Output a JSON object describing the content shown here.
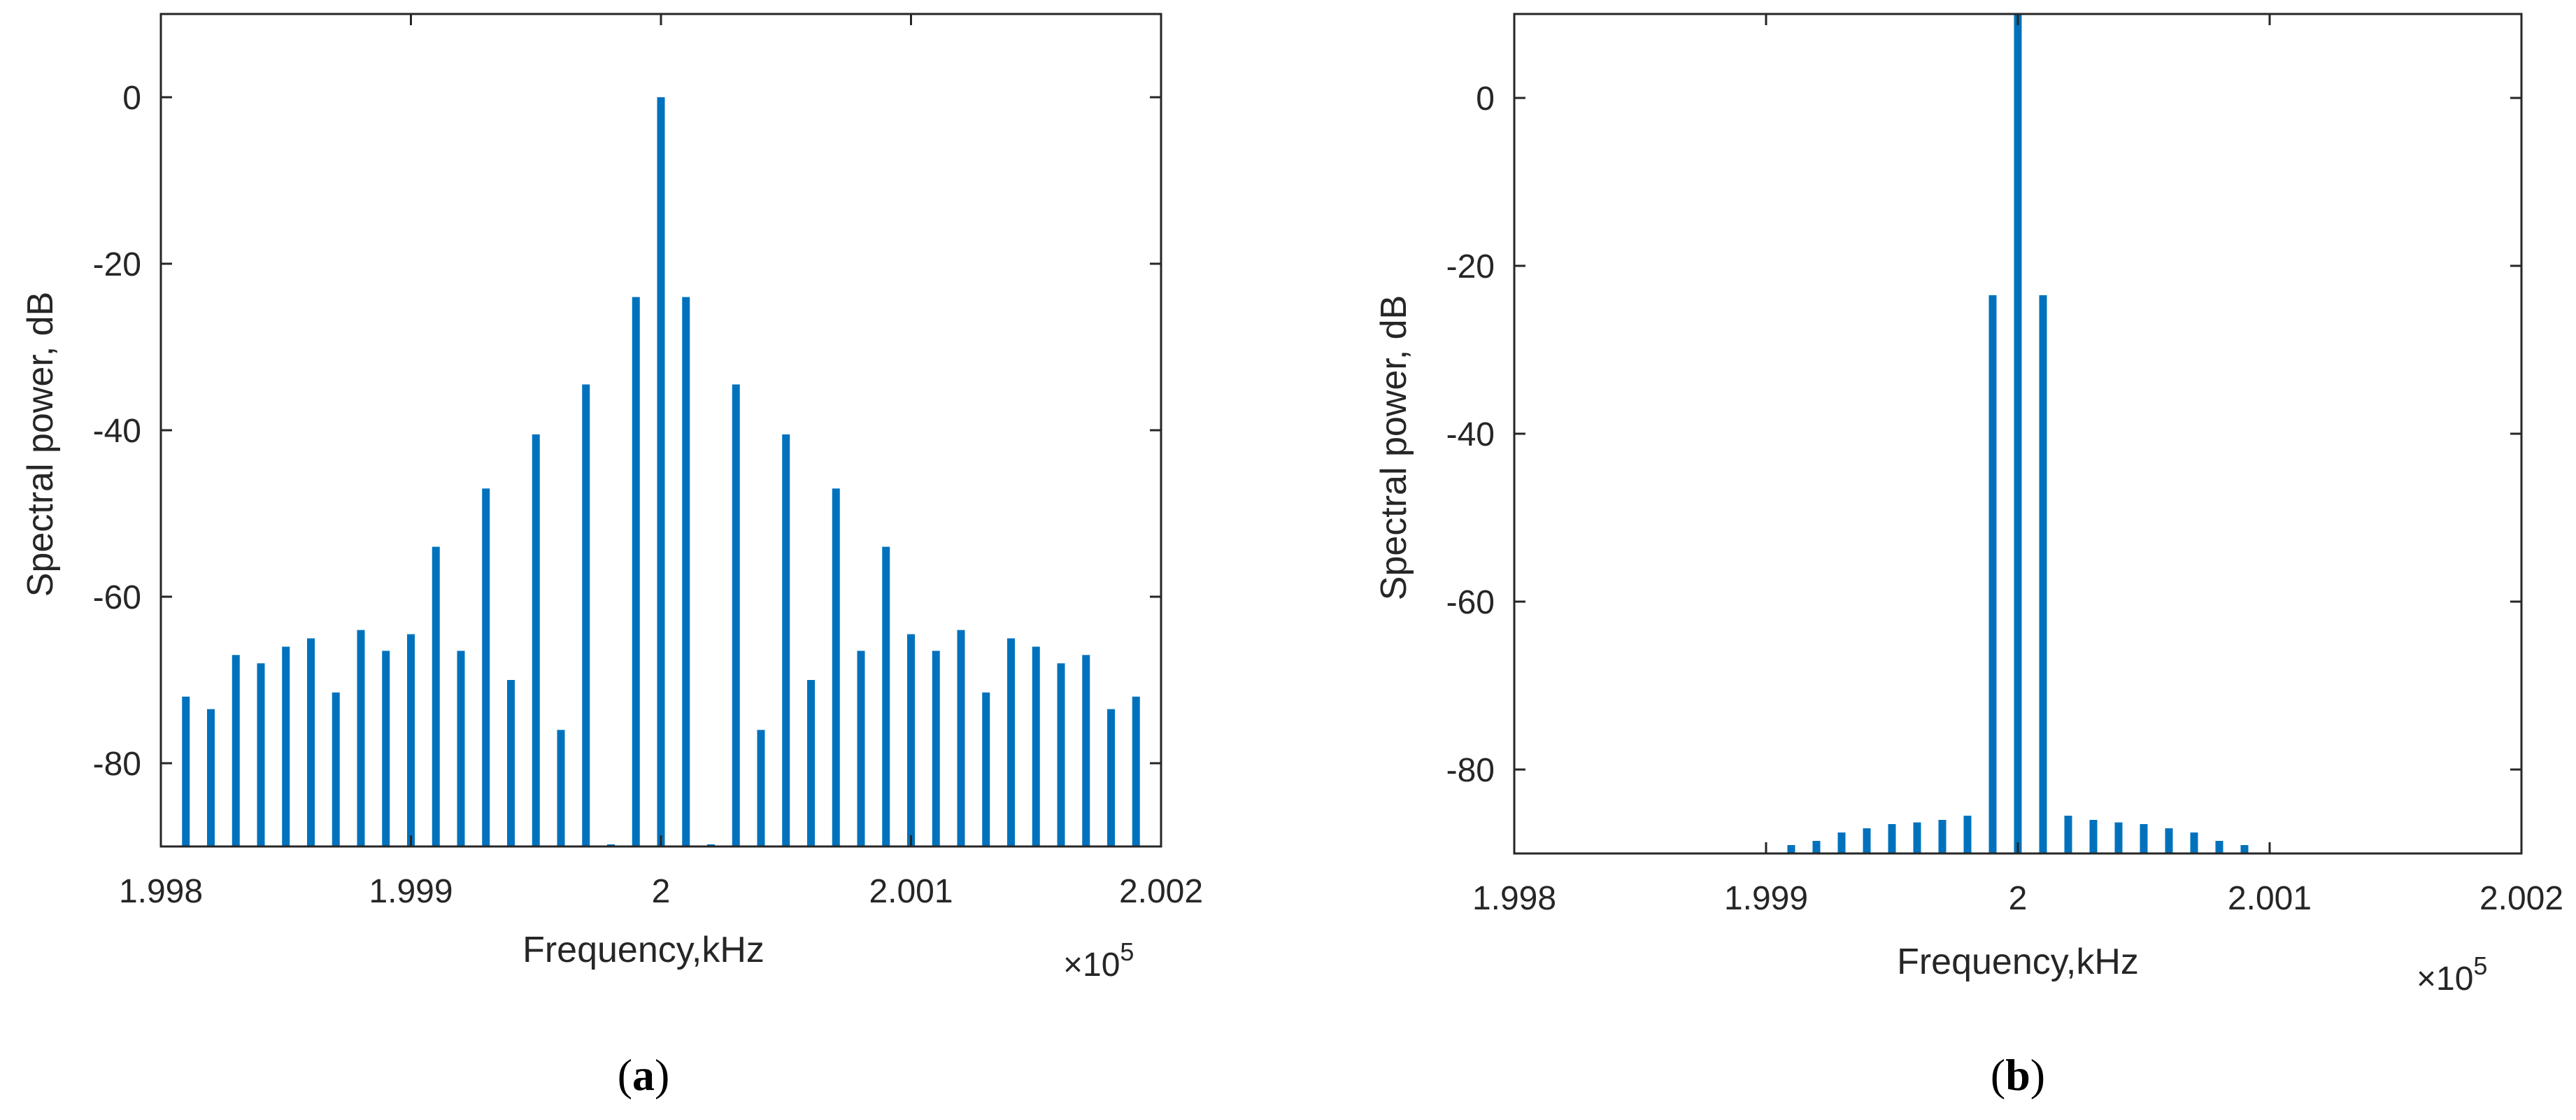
{
  "colors": {
    "bar": "#0072BD",
    "axis": "#262626",
    "tick_text": "#262626",
    "background": "#ffffff"
  },
  "panels": [
    {
      "caption_open": "(",
      "caption_letter": "a",
      "caption_close": ")",
      "exponent_base": "×10",
      "exponent_power": "5"
    },
    {
      "caption_open": "(",
      "caption_letter": "b",
      "caption_close": ")",
      "exponent_base": "×10",
      "exponent_power": "5"
    }
  ],
  "chart_data": [
    {
      "type": "bar",
      "style": "stem",
      "xlabel": "Frequency,kHz",
      "ylabel": "Spectral power, dB",
      "x_multiplier": "×10^5",
      "xlim": [
        1.998,
        2.002
      ],
      "ylim": [
        -90,
        10
      ],
      "baseline": -90,
      "xticks": [
        1.998,
        1.999,
        2,
        2.001,
        2.002
      ],
      "xtick_labels": [
        "1.998",
        "1.999",
        "2",
        "2.001",
        "2.002"
      ],
      "yticks": [
        0,
        -20,
        -40,
        -60,
        -80
      ],
      "ytick_labels": [
        "0",
        "-20",
        "-40",
        "-60",
        "-80"
      ],
      "grid": false,
      "box": true,
      "x": [
        1.9981,
        1.9982,
        1.9983,
        1.9984,
        1.9985,
        1.9986,
        1.9987,
        1.9988,
        1.9989,
        1.999,
        1.9991,
        1.9992,
        1.9993,
        1.9994,
        1.9995,
        1.9996,
        1.9997,
        1.9998,
        1.9999,
        2.0,
        2.0001,
        2.0002,
        2.0003,
        2.0004,
        2.0005,
        2.0006,
        2.0007,
        2.0008,
        2.0009,
        2.001,
        2.0011,
        2.0012,
        2.0013,
        2.0014,
        2.0015,
        2.0016,
        2.0017,
        2.0018,
        2.0019
      ],
      "values": [
        -72,
        -73.5,
        -67,
        -68,
        -66,
        -65,
        -71.5,
        -64,
        -66.5,
        -64.5,
        -54,
        -66.5,
        -47,
        -70,
        -40.5,
        -76,
        -34.5,
        -90,
        -24,
        0,
        -24,
        -90,
        -34.5,
        -76,
        -40.5,
        -70,
        -47,
        -66.5,
        -54,
        -64.5,
        -66.5,
        -64,
        -71.5,
        -65,
        -66,
        -68,
        -67,
        -73.5,
        -72
      ]
    },
    {
      "type": "bar",
      "style": "stem",
      "xlabel": "Frequency,kHz",
      "ylabel": "Spectral power, dB",
      "x_multiplier": "×10^5",
      "xlim": [
        1.998,
        2.002
      ],
      "ylim": [
        -90,
        10
      ],
      "baseline": -90,
      "xticks": [
        1.998,
        1.999,
        2,
        2.001,
        2.002
      ],
      "xtick_labels": [
        "1.998",
        "1.999",
        "2",
        "2.001",
        "2.002"
      ],
      "yticks": [
        0,
        -20,
        -40,
        -60,
        -80
      ],
      "ytick_labels": [
        "0",
        "-20",
        "-40",
        "-60",
        "-80"
      ],
      "grid": false,
      "box": true,
      "x": [
        1.9991,
        1.9992,
        1.9993,
        1.9994,
        1.9995,
        1.9996,
        1.9997,
        1.9998,
        1.9999,
        2.0,
        2.0001,
        2.0002,
        2.0003,
        2.0004,
        2.0005,
        2.0006,
        2.0007,
        2.0008,
        2.0009
      ],
      "values": [
        -89,
        -88.5,
        -87.5,
        -87,
        -86.5,
        -86.3,
        -86,
        -85.5,
        -23.5,
        10,
        -23.5,
        -85.5,
        -86,
        -86.3,
        -86.5,
        -87,
        -87.5,
        -88.5,
        -89
      ]
    }
  ]
}
